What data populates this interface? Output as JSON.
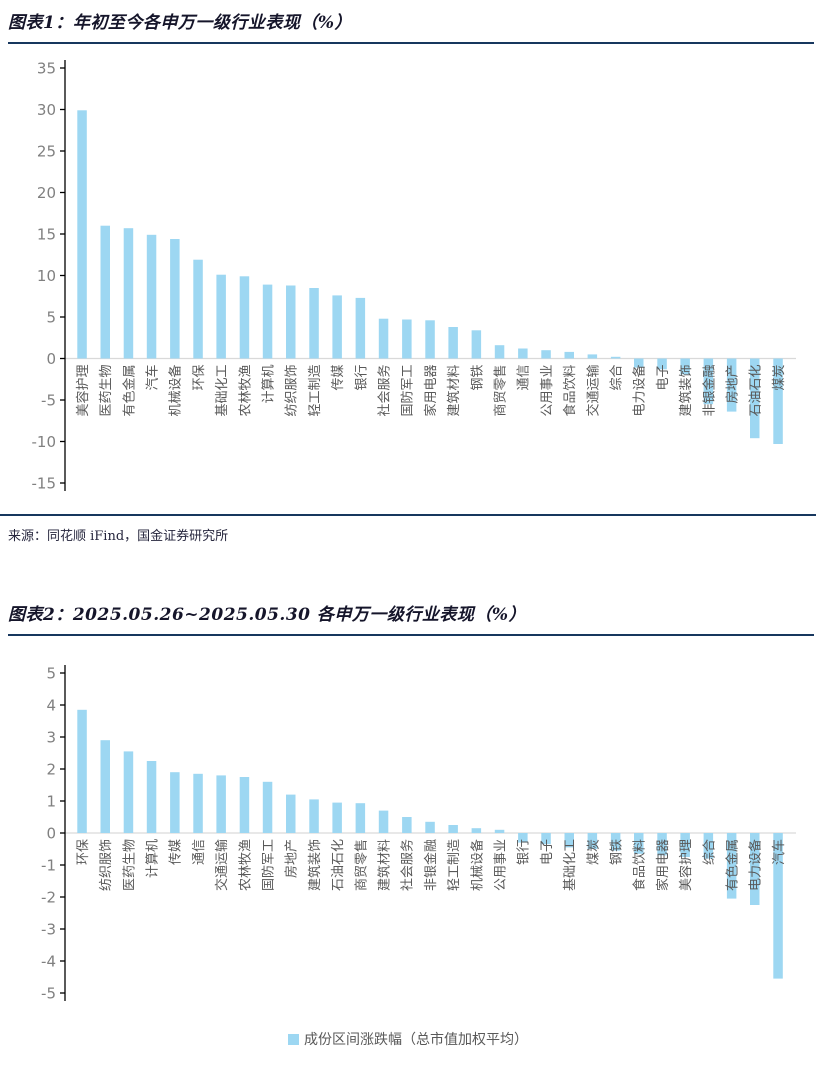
{
  "figure1": {
    "title": "图表1：年初至今各申万一级行业表现（%）",
    "source": "来源：同花顺 iFind，国金证券研究所",
    "chart_data": {
      "type": "bar",
      "title": "年初至今各申万一级行业表现（%）",
      "categories": [
        "美容护理",
        "医药生物",
        "有色金属",
        "汽车",
        "机械设备",
        "环保",
        "基础化工",
        "农林牧渔",
        "计算机",
        "纺织服饰",
        "轻工制造",
        "传媒",
        "银行",
        "社会服务",
        "国防军工",
        "家用电器",
        "建筑材料",
        "钢铁",
        "商贸零售",
        "通信",
        "公用事业",
        "食品饮料",
        "交通运输",
        "综合",
        "电力设备",
        "电子",
        "建筑装饰",
        "非银金融",
        "房地产",
        "石油石化",
        "煤炭"
      ],
      "values": [
        29.9,
        16.0,
        15.7,
        14.9,
        14.4,
        11.9,
        10.1,
        9.9,
        8.9,
        8.8,
        8.5,
        7.6,
        7.3,
        4.8,
        4.7,
        4.6,
        3.8,
        3.4,
        1.6,
        1.2,
        1.0,
        0.8,
        0.5,
        0.2,
        -1.1,
        -1.3,
        -1.9,
        -5.5,
        -6.4,
        -9.6,
        -10.3
      ],
      "xlabel": "",
      "ylabel": "",
      "ylim": [
        -15,
        35
      ],
      "yticks": [
        35,
        30,
        25,
        20,
        15,
        10,
        5,
        0,
        -5,
        -10,
        -15
      ],
      "grid": false,
      "legend_position": "none",
      "bar_color": "#9DD7F2",
      "axis_color": "#000000",
      "zero_line_color": "#D9D9D9",
      "tick_label_color": "#808080",
      "category_label_color": "#595959"
    }
  },
  "figure2": {
    "title": "图表2：2025.05.26~2025.05.30 各申万一级行业表现（%）",
    "chart_data": {
      "type": "bar",
      "title": "2025.05.26~2025.05.30 各申万一级行业表现（%）",
      "categories": [
        "环保",
        "纺织服饰",
        "医药生物",
        "计算机",
        "传媒",
        "通信",
        "交通运输",
        "农林牧渔",
        "国防军工",
        "房地产",
        "建筑装饰",
        "石油石化",
        "商贸零售",
        "建筑材料",
        "社会服务",
        "非银金融",
        "轻工制造",
        "机械设备",
        "公用事业",
        "银行",
        "电子",
        "基础化工",
        "煤炭",
        "钢铁",
        "食品饮料",
        "家用电器",
        "美容护理",
        "综合",
        "有色金属",
        "电力设备",
        "汽车"
      ],
      "values": [
        3.85,
        2.9,
        2.55,
        2.25,
        1.9,
        1.85,
        1.8,
        1.75,
        1.6,
        1.2,
        1.05,
        0.95,
        0.93,
        0.7,
        0.5,
        0.35,
        0.25,
        0.15,
        0.1,
        -0.3,
        -0.35,
        -0.45,
        -0.5,
        -0.55,
        -0.65,
        -0.7,
        -0.75,
        -0.8,
        -2.05,
        -2.25,
        -4.55
      ],
      "xlabel": "",
      "ylabel": "",
      "ylim": [
        -5,
        5
      ],
      "yticks": [
        5,
        4,
        3,
        2,
        1,
        0,
        -1,
        -2,
        -3,
        -4,
        -5
      ],
      "grid": false,
      "legend": "成份区间涨跌幅（总市值加权平均）",
      "legend_position": "bottom",
      "bar_color": "#9DD7F2",
      "axis_color": "#000000",
      "zero_line_color": "#D9D9D9",
      "tick_label_color": "#808080",
      "category_label_color": "#595959"
    }
  }
}
